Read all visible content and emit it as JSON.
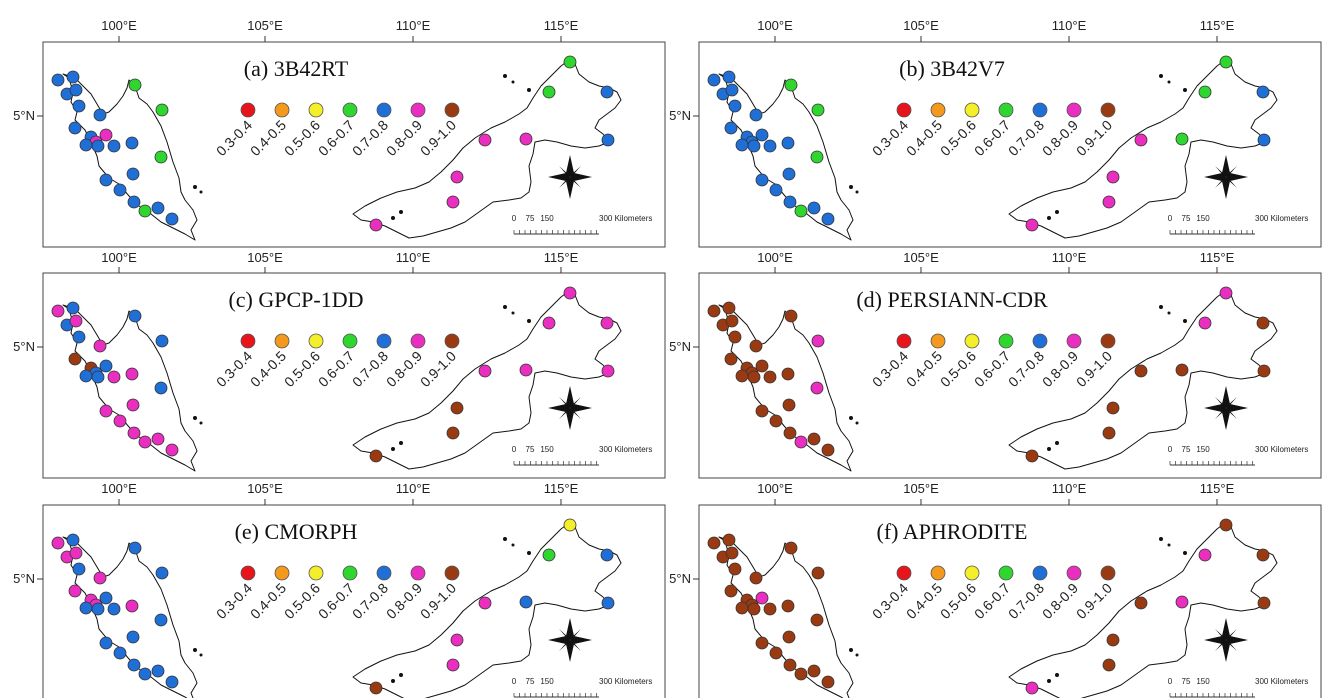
{
  "figure": {
    "longitude_ticks": [
      "100°E",
      "105°E",
      "110°E",
      "115°E"
    ],
    "latitude_tick": "5°N",
    "legend": [
      {
        "label": "0.3-0.4",
        "color": "#e8141b"
      },
      {
        "label": "0.4-0.5",
        "color": "#f39a1e"
      },
      {
        "label": "0.5-0.6",
        "color": "#f5ef2a"
      },
      {
        "label": "0.6-0.7",
        "color": "#2fd62f"
      },
      {
        "label": "0.7-0.8",
        "color": "#1f6fd6"
      },
      {
        "label": "0.8-0.9",
        "color": "#ea2fc0"
      },
      {
        "label": "0.9-1.0",
        "color": "#9a3a12"
      }
    ],
    "scale_bar": {
      "labels": [
        "0",
        "75",
        "150",
        "300 Kilometers"
      ]
    },
    "north_arrow": "compass-rose-icon",
    "panels": [
      {
        "title": "(a) 3B42RT",
        "pen": [
          4,
          4,
          4,
          4,
          3,
          4,
          4,
          4,
          4,
          5,
          5,
          4,
          3,
          4,
          4,
          4,
          3,
          4,
          4,
          4,
          4,
          3,
          4,
          4
        ],
        "bor": [
          3,
          4,
          3,
          4,
          5,
          5,
          5,
          5,
          5
        ]
      },
      {
        "title": "(b) 3B42V7",
        "pen": [
          4,
          4,
          4,
          4,
          3,
          4,
          4,
          4,
          4,
          4,
          4,
          4,
          3,
          4,
          4,
          4,
          3,
          4,
          4,
          4,
          4,
          3,
          4,
          4
        ],
        "bor": [
          3,
          4,
          3,
          4,
          3,
          5,
          5,
          5,
          5
        ]
      },
      {
        "title": "(c) GPCP-1DD",
        "pen": [
          5,
          4,
          4,
          5,
          4,
          4,
          5,
          6,
          6,
          4,
          4,
          4,
          4,
          4,
          5,
          5,
          4,
          5,
          5,
          5,
          5,
          5,
          5,
          5
        ],
        "bor": [
          5,
          5,
          5,
          5,
          5,
          5,
          6,
          6,
          6
        ]
      },
      {
        "title": "(d) PERSIANN-CDR",
        "pen": [
          6,
          6,
          6,
          6,
          6,
          6,
          6,
          6,
          6,
          6,
          6,
          6,
          5,
          6,
          6,
          6,
          5,
          6,
          6,
          6,
          6,
          5,
          6,
          6
        ],
        "bor": [
          5,
          6,
          5,
          6,
          6,
          6,
          6,
          6,
          6
        ]
      },
      {
        "title": "(e) CMORPH",
        "pen": [
          5,
          4,
          5,
          5,
          4,
          4,
          5,
          5,
          5,
          4,
          5,
          4,
          4,
          4,
          4,
          5,
          4,
          4,
          4,
          4,
          4,
          4,
          4,
          4
        ],
        "bor": [
          2,
          4,
          3,
          4,
          4,
          5,
          5,
          5,
          6
        ]
      },
      {
        "title": "(f) APHRODITE",
        "pen": [
          6,
          6,
          6,
          6,
          6,
          6,
          6,
          6,
          6,
          5,
          6,
          6,
          6,
          6,
          6,
          6,
          6,
          6,
          6,
          6,
          6,
          6,
          6,
          6
        ],
        "bor": [
          6,
          6,
          5,
          6,
          5,
          6,
          6,
          6,
          5
        ]
      }
    ]
  }
}
